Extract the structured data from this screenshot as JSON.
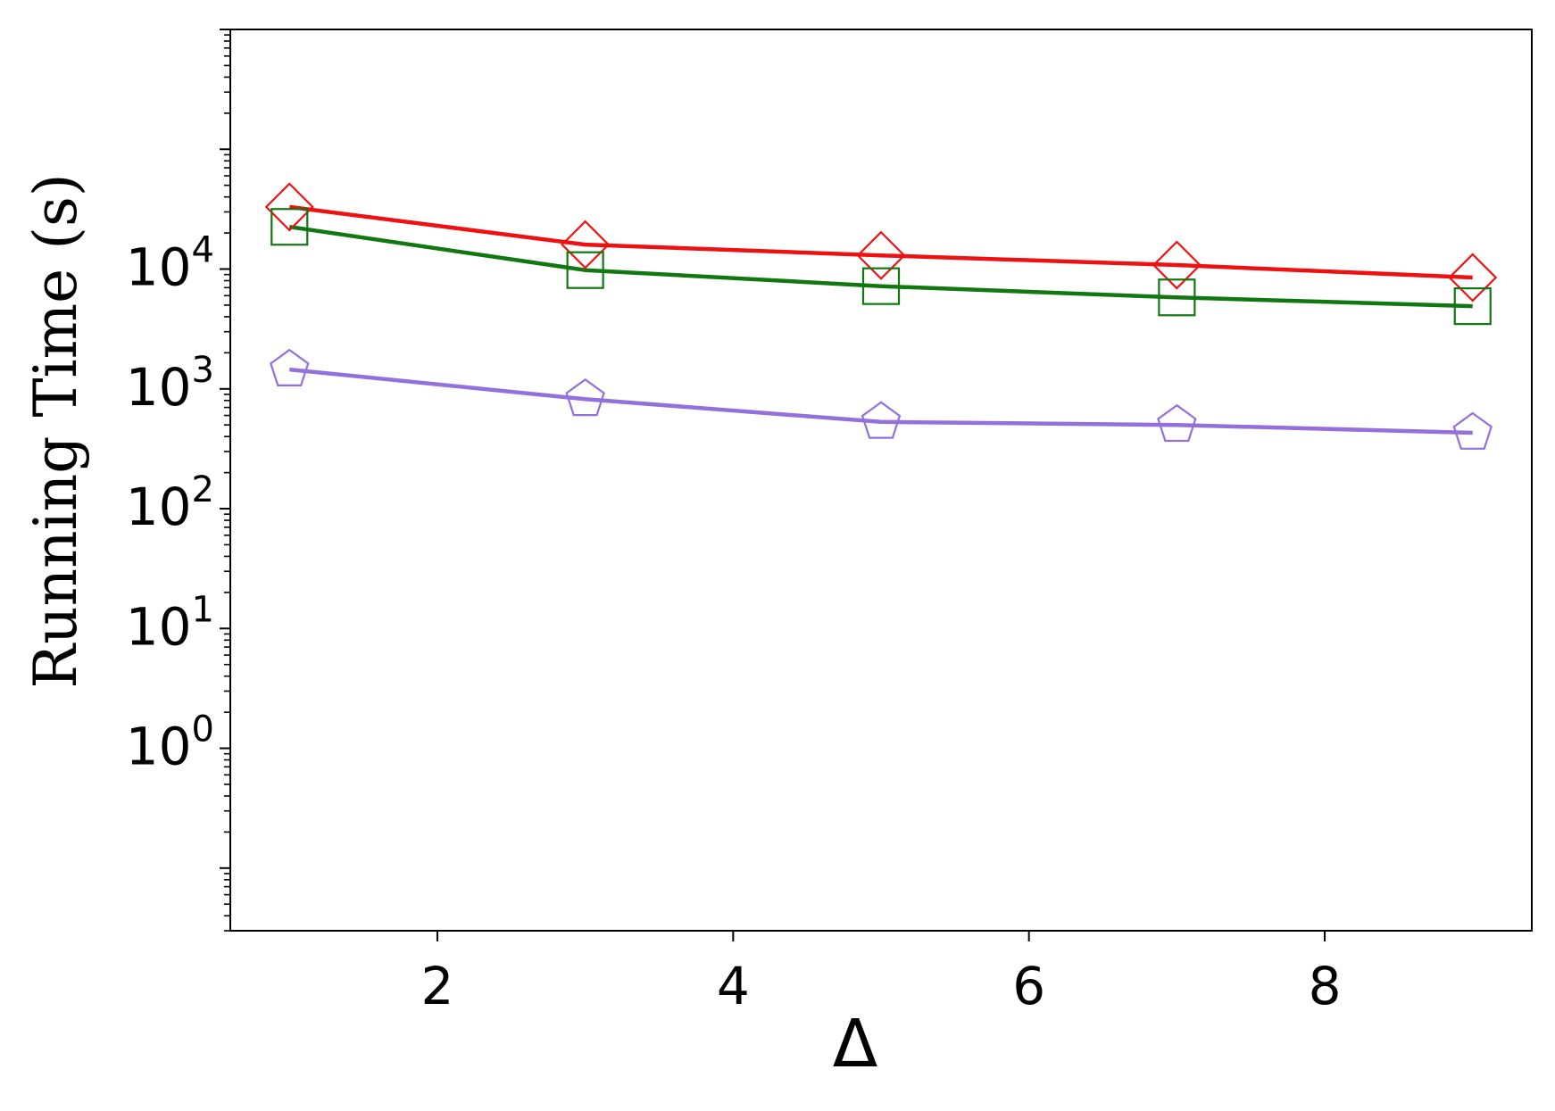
{
  "chart_data": {
    "type": "line",
    "xlabel": "Δ",
    "ylabel": "Running Time (s)",
    "title": "",
    "x": [
      1,
      3,
      5,
      7,
      9
    ],
    "xlim": [
      0.6,
      9.4
    ],
    "ylim": [
      0.03,
      1000000
    ],
    "yscale": "log",
    "grid": false,
    "legend": "none",
    "x_ticks": [
      2,
      4,
      6,
      8
    ],
    "y_ticks": [
      {
        "value": 1,
        "base": "10",
        "exp": "0"
      },
      {
        "value": 10,
        "base": "10",
        "exp": "1"
      },
      {
        "value": 100,
        "base": "10",
        "exp": "2"
      },
      {
        "value": 1000,
        "base": "10",
        "exp": "3"
      },
      {
        "value": 10000,
        "base": "10",
        "exp": "4"
      }
    ],
    "series": [
      {
        "values": [
          33000,
          16000,
          13000,
          10800,
          8500
        ],
        "color": "#ee1111",
        "marker": "diamond"
      },
      {
        "values": [
          22500,
          9800,
          7200,
          5800,
          4900
        ],
        "color": "#117711",
        "marker": "square"
      },
      {
        "values": [
          1450,
          820,
          530,
          500,
          430
        ],
        "color": "#9370db",
        "marker": "pentagon"
      }
    ]
  }
}
